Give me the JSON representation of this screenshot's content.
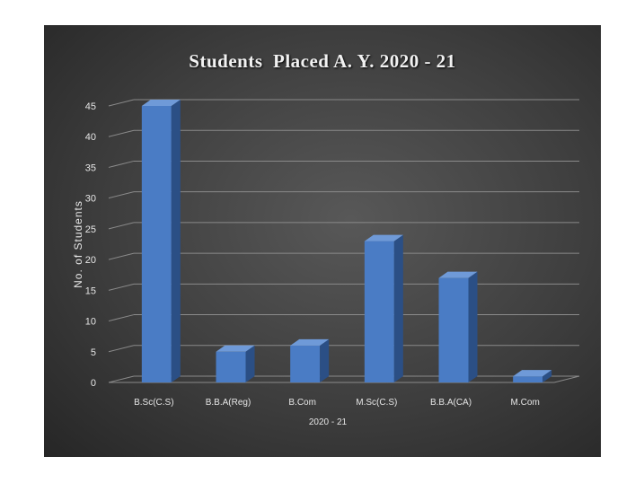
{
  "chart_data": {
    "type": "bar",
    "title": "Students  Placed A. Y. 2020 - 21",
    "xlabel": "2020 - 21",
    "ylabel": "No. of Students",
    "categories": [
      "B.Sc(C.S)",
      "B.B.A(Reg)",
      "B.Com",
      "M.Sc(C.S)",
      "B.B.A(CA)",
      "M.Com"
    ],
    "values": [
      45,
      5,
      6,
      23,
      17,
      1
    ],
    "ylim": [
      0,
      45
    ],
    "yticks": [
      0,
      5,
      10,
      15,
      20,
      25,
      30,
      35,
      40,
      45
    ],
    "grid": true,
    "legend": "none",
    "colors": {
      "bar_front": "#4a7cc5",
      "bar_side": "#2b4f85",
      "bar_top": "#6f9ad8",
      "grid": "#8a8a8a",
      "text": "#e6e6e6"
    }
  }
}
